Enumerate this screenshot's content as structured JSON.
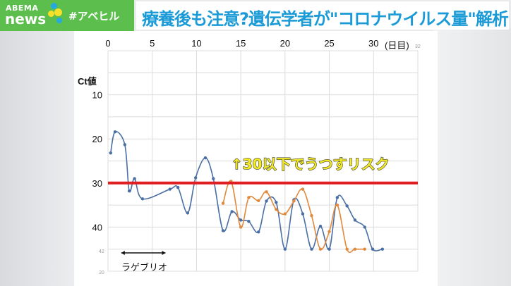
{
  "header": {
    "logo_top": "ABEMA",
    "logo_bottom": "news",
    "hashtag": "#アベヒル",
    "title": "療養後も注意?遺伝学者が\"コロナウイルス量\"解析"
  },
  "colors": {
    "brand_green": "#5cbf4d",
    "title_blue": "#1a9ad6",
    "series_blue": "#4a6fa5",
    "series_orange": "#e08a3c",
    "threshold_red": "#e02020",
    "annotation_yellow": "#f3ea2a"
  },
  "chart_data": {
    "type": "line",
    "xlabel": "(日目)",
    "ylabel": "Ct値",
    "x_ticks": [
      "0",
      "5",
      "10",
      "15",
      "20",
      "25",
      "30"
    ],
    "y_ticks": [
      "10",
      "20",
      "30",
      "40"
    ],
    "y_extra_ticks": [
      "42",
      "20"
    ],
    "corner_label": "32",
    "xlim": [
      0,
      35
    ],
    "ylim": [
      0,
      50
    ],
    "y_inverted": true,
    "grid": true,
    "threshold": {
      "value": 30,
      "label": "↑30以下でうつすリスク"
    },
    "treatment": {
      "label": "ラゲブリオ",
      "start": 1.5,
      "end": 6.5
    },
    "series": [
      {
        "color": "#4a6fa5",
        "x": [
          0.3,
          0.8,
          1.9,
          2.4,
          3.0,
          3.9,
          7.0,
          7.9,
          9.0,
          9.9,
          11.0,
          11.9,
          13.0,
          14.0,
          15.0,
          15.9,
          17.0,
          17.9,
          19.0,
          20.0,
          21.0,
          22.0,
          23.0,
          24.0,
          25.0,
          25.9,
          27.0,
          27.9,
          29.0,
          29.9,
          31.0
        ],
        "y": [
          23.2,
          18.4,
          21.3,
          31.8,
          29,
          33.6,
          31.4,
          31,
          36.8,
          28.8,
          24.3,
          29,
          40.8,
          36.5,
          38.4,
          38.7,
          41.1,
          34.1,
          34.4,
          45,
          33.8,
          37,
          45,
          39.8,
          45,
          33.3,
          35.2,
          38.4,
          40,
          45,
          45
        ]
      },
      {
        "color": "#e08a3c",
        "x": [
          13.0,
          13.9,
          15.0,
          15.9,
          17.0,
          17.9,
          19.0,
          20.0,
          21.0,
          22.0,
          23.0,
          24.0,
          25.0,
          25.9,
          27.0,
          27.9,
          29.0
        ],
        "y": [
          34.6,
          29.6,
          40,
          33.3,
          34,
          32,
          36,
          37,
          34.1,
          31.4,
          37.4,
          45,
          41,
          35,
          45,
          45,
          45
        ]
      }
    ]
  }
}
